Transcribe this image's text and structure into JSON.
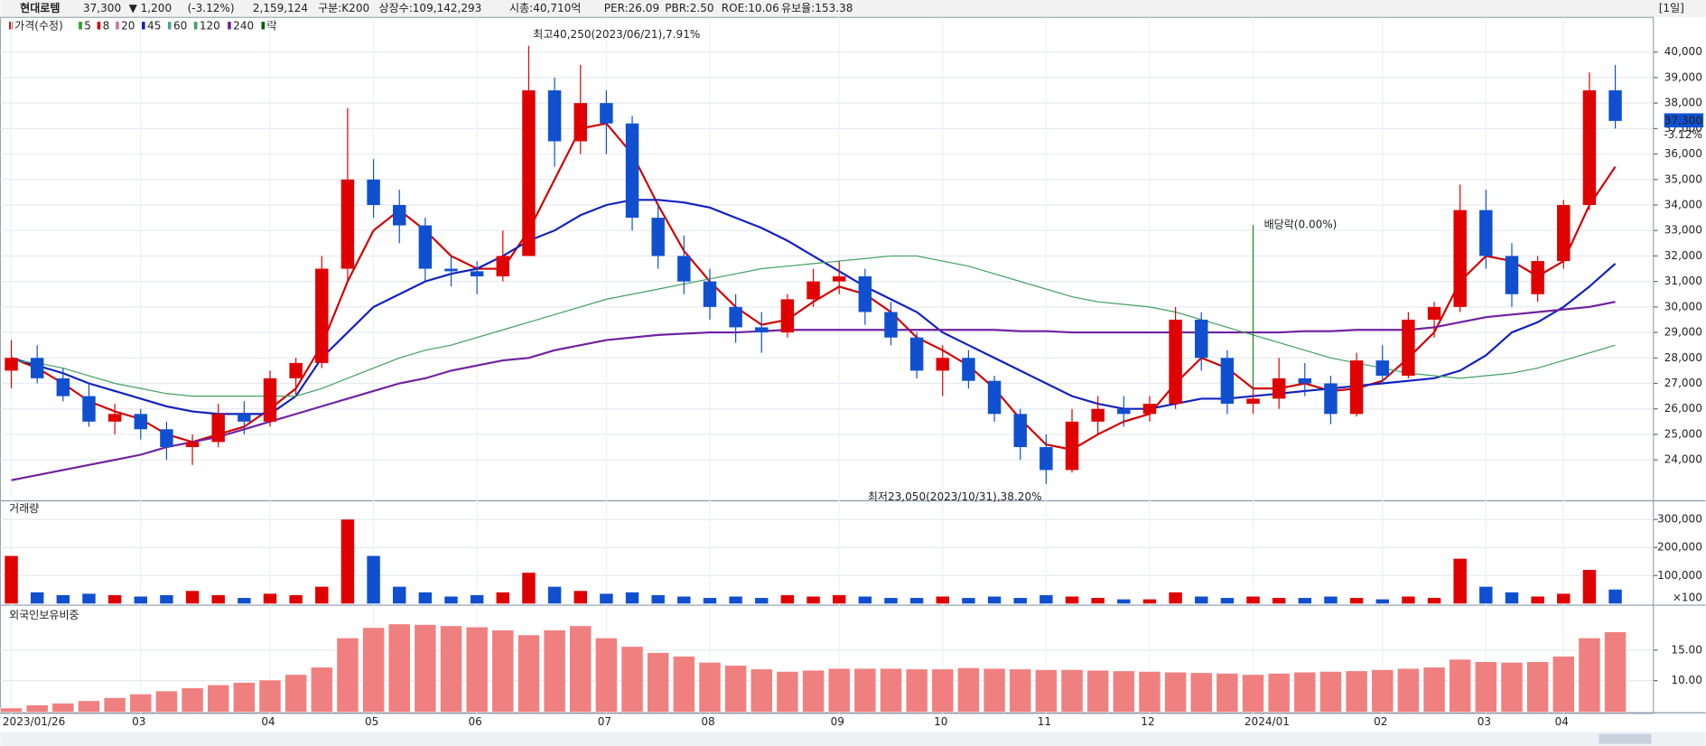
{
  "chart_data": {
    "type": "candlestick",
    "header": [
      "현대로템",
      "37,300",
      "▼ 1,200",
      "(-3.12%)",
      "2,159,124",
      "구분:K200",
      "상장수:109,142,293",
      "시총:40,710억",
      "PER:26.09",
      "PBR:2.50",
      "ROE:10.06",
      "유보율:153.38"
    ],
    "period": "[1일]",
    "legend": [
      "가격(수정)",
      "5",
      "8",
      "20",
      "45",
      "60",
      "120",
      "240",
      "락"
    ],
    "legend_colors": [
      "#c00000",
      "#22a022",
      "#d00000",
      "#d070a0",
      "#1020c0",
      "#50a0a0",
      "#40a060",
      "#7020a0",
      "#006000"
    ],
    "categories": [
      "2023/01/26",
      null,
      null,
      null,
      null,
      "03",
      null,
      null,
      null,
      null,
      "04",
      null,
      null,
      null,
      "05",
      null,
      null,
      null,
      "06",
      null,
      null,
      null,
      null,
      "07",
      null,
      null,
      null,
      "08",
      null,
      null,
      null,
      null,
      "09",
      null,
      null,
      null,
      "10",
      null,
      null,
      null,
      "11",
      null,
      null,
      null,
      "12",
      null,
      null,
      null,
      "2024/01",
      null,
      null,
      null,
      null,
      "02",
      null,
      null,
      null,
      "03",
      null,
      null,
      "04",
      null,
      null
    ],
    "open": [
      27500,
      28000,
      27200,
      26500,
      25500,
      25800,
      25200,
      24500,
      24700,
      25800,
      25500,
      27200,
      27800,
      31500,
      35000,
      34000,
      33200,
      31500,
      31400,
      31200,
      32000,
      38500,
      36500,
      38000,
      37200,
      33500,
      32000,
      31000,
      30000,
      29200,
      29000,
      30300,
      31000,
      31200,
      29800,
      28800,
      27500,
      28000,
      27100,
      25800,
      24500,
      23600,
      25500,
      26000,
      25800,
      26200,
      29500,
      28000,
      26200,
      26400,
      27200,
      27000,
      25800,
      27900,
      27300,
      29500,
      30000,
      33800,
      32000,
      30500,
      31800,
      34000,
      38500
    ],
    "high": [
      28700,
      28500,
      27600,
      27000,
      26200,
      26000,
      25500,
      25000,
      26200,
      26300,
      27500,
      28000,
      32000,
      37800,
      35800,
      34600,
      33500,
      32000,
      31800,
      33000,
      40250,
      39000,
      39500,
      38500,
      37500,
      34000,
      32800,
      31500,
      30500,
      29800,
      30500,
      31500,
      31800,
      31500,
      30200,
      29000,
      28500,
      28300,
      27300,
      26000,
      25000,
      26000,
      26500,
      26500,
      26500,
      30000,
      29800,
      28300,
      26800,
      28000,
      27800,
      27300,
      28200,
      28500,
      29800,
      30200,
      34800,
      34600,
      32500,
      32000,
      34200,
      39200,
      39500
    ],
    "low": [
      26800,
      27000,
      26300,
      25300,
      25000,
      24800,
      24000,
      23800,
      24500,
      25000,
      25300,
      26500,
      27600,
      31000,
      33500,
      32500,
      31000,
      30800,
      30500,
      31000,
      32000,
      35500,
      36000,
      36000,
      33000,
      31500,
      30500,
      29500,
      28600,
      28200,
      28800,
      30000,
      30500,
      29300,
      28500,
      27200,
      26500,
      26800,
      25500,
      24000,
      23050,
      23500,
      25000,
      25300,
      25500,
      26000,
      27500,
      25800,
      25800,
      26000,
      26500,
      25400,
      25700,
      27000,
      27200,
      28800,
      29800,
      31500,
      30000,
      30200,
      31500,
      33800,
      37000
    ],
    "close": [
      28000,
      27200,
      26500,
      25500,
      25800,
      25200,
      24500,
      24700,
      25800,
      25500,
      27200,
      27800,
      31500,
      35000,
      34000,
      33200,
      31500,
      31400,
      31200,
      32000,
      38500,
      36500,
      38000,
      37200,
      33500,
      32000,
      31000,
      30000,
      29200,
      29000,
      30300,
      31000,
      31200,
      29800,
      28800,
      27500,
      28000,
      27100,
      25800,
      24500,
      23600,
      25500,
      26000,
      25800,
      26200,
      29500,
      28000,
      26200,
      26400,
      27200,
      27000,
      25800,
      27900,
      27300,
      29500,
      30000,
      33800,
      32000,
      30500,
      31800,
      34000,
      38500,
      37300
    ],
    "series": [
      {
        "color": "#d00000",
        "values": [
          28000,
          27600,
          27000,
          26300,
          25900,
          25600,
          25000,
          24700,
          25000,
          25300,
          26000,
          26800,
          28500,
          31000,
          33000,
          33800,
          33000,
          32000,
          31500,
          31500,
          33000,
          35000,
          37000,
          37200,
          36000,
          34000,
          32200,
          31000,
          30000,
          29300,
          29500,
          30200,
          30800,
          30500,
          29800,
          28800,
          28300,
          27700,
          26800,
          25600,
          24600,
          24400,
          25000,
          25500,
          25800,
          27000,
          28000,
          27600,
          26800,
          26800,
          27000,
          26700,
          26800,
          27100,
          28000,
          29000,
          31000,
          32000,
          31800,
          31200,
          31800,
          34000,
          35500
        ]
      },
      {
        "color": "#1020c0",
        "values": [
          28000,
          27700,
          27400,
          27000,
          26700,
          26400,
          26100,
          25900,
          25800,
          25800,
          25800,
          26500,
          28000,
          29000,
          30000,
          30500,
          31000,
          31300,
          31500,
          32000,
          32600,
          33000,
          33600,
          34000,
          34200,
          34200,
          34100,
          33900,
          33500,
          33100,
          32600,
          32000,
          31400,
          30800,
          30300,
          29800,
          29000,
          28500,
          28000,
          27500,
          27000,
          26500,
          26200,
          26000,
          26000,
          26200,
          26400,
          26400,
          26500,
          26600,
          26700,
          26800,
          26900,
          27000,
          27100,
          27200,
          27500,
          28100,
          29000,
          29400,
          30000,
          30800,
          31700
        ]
      },
      {
        "color": "#7020a0",
        "values": [
          23200,
          23400,
          23600,
          23800,
          24000,
          24200,
          24500,
          24700,
          24900,
          25200,
          25500,
          25800,
          26100,
          26400,
          26700,
          27000,
          27200,
          27500,
          27700,
          27900,
          28000,
          28300,
          28500,
          28700,
          28800,
          28900,
          28950,
          29000,
          29000,
          29050,
          29100,
          29100,
          29100,
          29100,
          29100,
          29100,
          29100,
          29100,
          29100,
          29050,
          29050,
          29000,
          29000,
          29000,
          29000,
          29000,
          29000,
          29000,
          29000,
          29000,
          29050,
          29050,
          29100,
          29100,
          29100,
          29200,
          29400,
          29600,
          29700,
          29800,
          29900,
          30000,
          30200
        ]
      },
      {
        "color": "#40a060",
        "values": [
          27900,
          27800,
          27600,
          27300,
          27000,
          26800,
          26600,
          26500,
          26500,
          26500,
          26500,
          26500,
          26800,
          27200,
          27600,
          28000,
          28300,
          28500,
          28800,
          29100,
          29400,
          29700,
          30000,
          30300,
          30500,
          30700,
          30900,
          31100,
          31300,
          31500,
          31600,
          31700,
          31800,
          31900,
          32000,
          32000,
          31800,
          31600,
          31300,
          31000,
          30700,
          30400,
          30200,
          30100,
          30000,
          29800,
          29500,
          29200,
          28900,
          28600,
          28300,
          28000,
          27800,
          27600,
          27400,
          27300,
          27200,
          27300,
          27400,
          27600,
          27900,
          28200,
          28500
        ]
      }
    ],
    "ylim": [
      22500,
      40850
    ],
    "yticks": [
      {
        "value": 24000,
        "label": "24,000"
      },
      {
        "value": 25000,
        "label": "25,000"
      },
      {
        "value": 26000,
        "label": "26,000"
      },
      {
        "value": 27000,
        "label": "27,000"
      },
      {
        "value": 28000,
        "label": "28,000"
      },
      {
        "value": 29000,
        "label": "29,000"
      },
      {
        "value": 30000,
        "label": "30,000"
      },
      {
        "value": 31000,
        "label": "31,000"
      },
      {
        "value": 32000,
        "label": "32,000"
      },
      {
        "value": 33000,
        "label": "33,000"
      },
      {
        "value": 34000,
        "label": "34,000"
      },
      {
        "value": 35000,
        "label": "35,000"
      },
      {
        "value": 36000,
        "label": "36,000"
      },
      {
        "value": 37000,
        "label": "37,000"
      },
      {
        "value": 38000,
        "label": "38,000"
      },
      {
        "value": 39000,
        "label": "39,000"
      },
      {
        "value": 40000,
        "label": "40,000"
      }
    ],
    "last_price_label": "37,300",
    "last_change_label": "-3.12%",
    "high_annotation": "최고40,250(2023/06/21),7.91%",
    "high_index": 20,
    "low_annotation": "최저23,050(2023/10/31),38.20%",
    "low_index": 40,
    "ex_dividend": "배당락(0.00%)",
    "ex_dividend_index": 48,
    "volume_title": "거래량",
    "volume_unit": "×100",
    "volume": [
      170000,
      40000,
      30000,
      35000,
      30000,
      25000,
      30000,
      45000,
      30000,
      20000,
      35000,
      30000,
      60000,
      300000,
      170000,
      60000,
      40000,
      25000,
      30000,
      40000,
      110000,
      60000,
      45000,
      35000,
      40000,
      30000,
      25000,
      20000,
      25000,
      20000,
      30000,
      25000,
      30000,
      25000,
      20000,
      20000,
      25000,
      20000,
      25000,
      20000,
      30000,
      25000,
      20000,
      15000,
      15000,
      40000,
      25000,
      20000,
      25000,
      20000,
      20000,
      25000,
      20000,
      15000,
      25000,
      20000,
      160000,
      60000,
      40000,
      25000,
      35000,
      120000,
      50000
    ],
    "vlim": [
      0,
      330000
    ],
    "vticks": [
      {
        "value": 100000,
        "label": "100,000"
      },
      {
        "value": 200000,
        "label": "200,000"
      },
      {
        "value": 300000,
        "label": "300,000"
      }
    ],
    "foreign_title": "외국인보유비중",
    "foreign": [
      5.5,
      6,
      6.3,
      6.7,
      7.2,
      7.8,
      8.3,
      8.8,
      9.3,
      9.7,
      10.1,
      11,
      12.2,
      17,
      18.7,
      19.3,
      19.2,
      19,
      18.8,
      18.3,
      17.5,
      18.3,
      19,
      17,
      15.6,
      14.6,
      14,
      13,
      12.5,
      11.9,
      11.5,
      11.7,
      12,
      12,
      12,
      11.9,
      11.9,
      12.1,
      12,
      11.9,
      11.8,
      11.8,
      11.7,
      11.6,
      11.5,
      11.4,
      11.3,
      11.2,
      11,
      11.2,
      11.4,
      11.5,
      11.6,
      11.8,
      12,
      12.2,
      13.5,
      13.1,
      13,
      13.1,
      14,
      17,
      18
    ],
    "flim": [
      4.8,
      21.4
    ],
    "fticks": [
      {
        "value": 10,
        "label": "10.00"
      },
      {
        "value": 15,
        "label": "15.00"
      }
    ]
  }
}
